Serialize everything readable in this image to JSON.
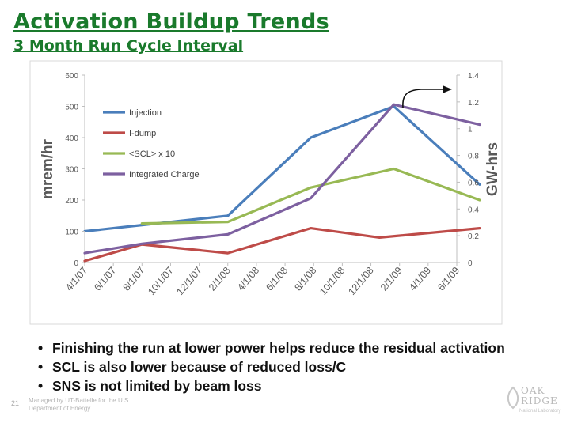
{
  "slide": {
    "title": "Activation Buildup Trends",
    "subtitle": "3 Month Run Cycle Interval",
    "bullets": [
      "Finishing the run at lower power helps reduce the residual activation",
      "SCL is also lower because of reduced loss/C",
      "SNS is not limited by beam loss"
    ],
    "footer_number": "21",
    "footer_text": "Managed by UT-Battelle for the U.S. Department of Energy",
    "logo_text": "OAK RIDGE",
    "logo_subtext": "National Laboratory"
  },
  "chart_data": {
    "type": "line",
    "categories": [
      "4/1/07",
      "6/1/07",
      "8/1/07",
      "10/1/07",
      "12/1/07",
      "2/1/08",
      "4/1/08",
      "6/1/08",
      "8/1/08",
      "10/1/08",
      "12/1/08",
      "2/1/09",
      "4/1/09",
      "6/1/09"
    ],
    "ylabel": "mrem/hr",
    "y2label": "GW-hrs",
    "ylim": [
      0,
      600
    ],
    "yticks": [
      0,
      100,
      200,
      300,
      400,
      500,
      600
    ],
    "y2lim": [
      0,
      1.4
    ],
    "y2ticks": [
      "0",
      "0.2",
      "0.4",
      "0.6",
      "0.8",
      "1",
      "1.2",
      "1.4"
    ],
    "grid": false,
    "legend_position": "top-left",
    "series": [
      {
        "name": "Injection",
        "color": "#4a7ebb",
        "axis": "left",
        "points": [
          [
            0,
            100
          ],
          [
            2,
            120
          ],
          [
            5,
            150
          ],
          [
            7.9,
            400
          ],
          [
            10.8,
            500
          ],
          [
            13.8,
            250
          ]
        ]
      },
      {
        "name": "I-dump",
        "color": "#be4b48",
        "axis": "left",
        "points": [
          [
            0,
            5
          ],
          [
            2,
            58
          ],
          [
            5,
            30
          ],
          [
            7.9,
            110
          ],
          [
            10.3,
            80
          ],
          [
            13.8,
            110
          ]
        ]
      },
      {
        "name": "<SCL> x 10",
        "color": "#98b954",
        "axis": "left",
        "points": [
          [
            2,
            125
          ],
          [
            5,
            130
          ],
          [
            7.9,
            240
          ],
          [
            10.8,
            300
          ],
          [
            13.8,
            200
          ]
        ]
      },
      {
        "name": "Integrated Charge",
        "color": "#7d60a0",
        "axis": "right",
        "points": [
          [
            0,
            0.07
          ],
          [
            2,
            0.14
          ],
          [
            5,
            0.21
          ],
          [
            7.9,
            0.48
          ],
          [
            10.8,
            1.18
          ],
          [
            13.8,
            1.03
          ]
        ]
      }
    ],
    "annotation": "arrow pointing to right axis"
  },
  "colors": {
    "title": "#1a7a2c",
    "axis_text": "#595959"
  }
}
